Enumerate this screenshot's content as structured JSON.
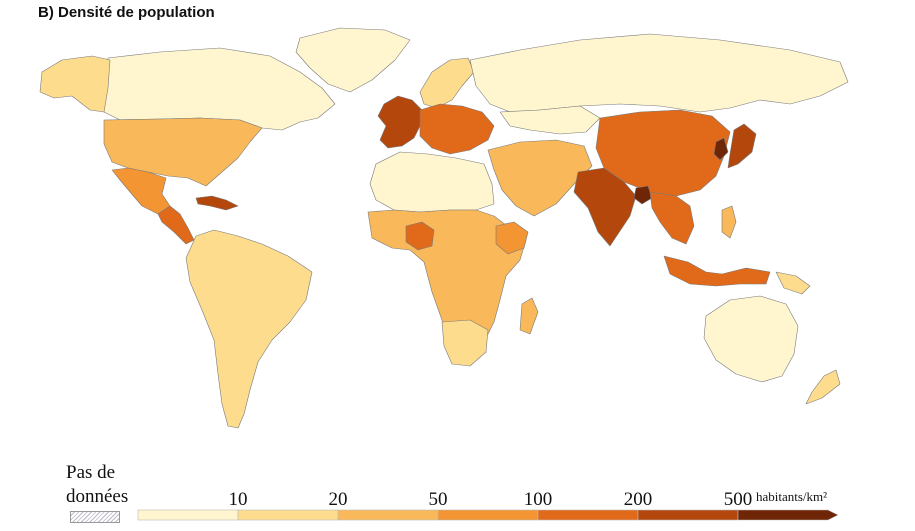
{
  "title": "B) Densité de population",
  "legend": {
    "no_data_line1": "Pas de",
    "no_data_line2": "données",
    "unit": "habitants/km²",
    "classes": [
      {
        "color": "#fff6cf"
      },
      {
        "color": "#fddc8e"
      },
      {
        "color": "#f9b95a"
      },
      {
        "color": "#f39533"
      },
      {
        "color": "#e06a1a"
      },
      {
        "color": "#b4470c"
      },
      {
        "color": "#6e2606"
      }
    ],
    "thresholds": [
      "10",
      "20",
      "50",
      "100",
      "200",
      "500"
    ]
  },
  "regions": [
    {
      "name": "Greenland",
      "class": 0
    },
    {
      "name": "Canada",
      "class": 0
    },
    {
      "name": "Alaska",
      "class": 1
    },
    {
      "name": "United States",
      "class": 2
    },
    {
      "name": "Mexico",
      "class": 3
    },
    {
      "name": "Central America",
      "class": 4
    },
    {
      "name": "Caribbean",
      "class": 5
    },
    {
      "name": "South America",
      "class": 1
    },
    {
      "name": "Europe West",
      "class": 5
    },
    {
      "name": "Europe Central",
      "class": 4
    },
    {
      "name": "Scandinavia",
      "class": 1
    },
    {
      "name": "Russia",
      "class": 0
    },
    {
      "name": "Kazakhstan",
      "class": 0
    },
    {
      "name": "Middle East",
      "class": 2
    },
    {
      "name": "North Africa",
      "class": 0
    },
    {
      "name": "Sub-Saharan Africa",
      "class": 2
    },
    {
      "name": "Nigeria",
      "class": 4
    },
    {
      "name": "Ethiopia",
      "class": 3
    },
    {
      "name": "China",
      "class": 4
    },
    {
      "name": "India",
      "class": 5
    },
    {
      "name": "Bangladesh",
      "class": 6
    },
    {
      "name": "Southeast Asia",
      "class": 4
    },
    {
      "name": "Japan",
      "class": 5
    },
    {
      "name": "Korea",
      "class": 6
    },
    {
      "name": "Indonesia",
      "class": 4
    },
    {
      "name": "Australia",
      "class": 0
    },
    {
      "name": "New Zealand",
      "class": 1
    },
    {
      "name": "Papua New Guinea",
      "class": 1
    },
    {
      "name": "Southern Africa",
      "class": 1
    }
  ]
}
